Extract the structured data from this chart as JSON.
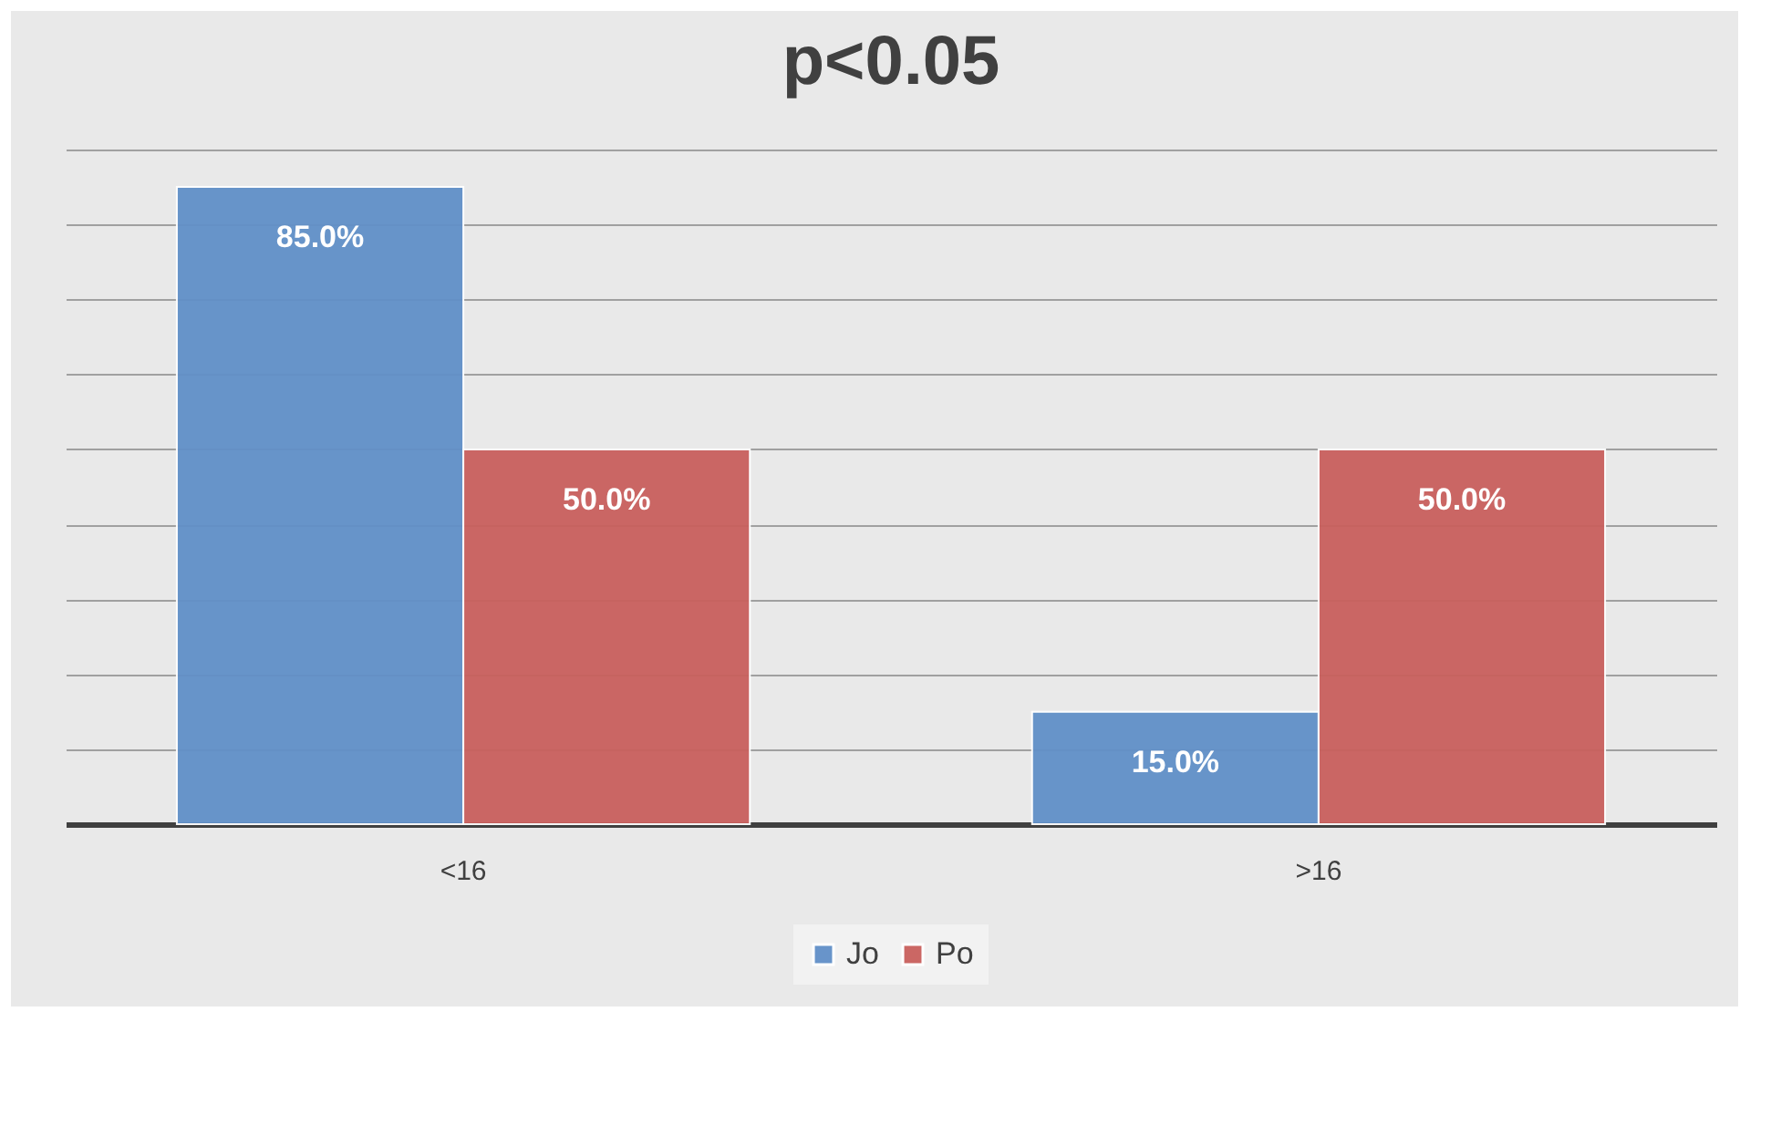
{
  "chart_data": {
    "type": "bar",
    "title": "p<0.05",
    "categories": [
      "<16",
      ">16"
    ],
    "series": [
      {
        "name": "Jo",
        "color": "#6190c8",
        "values": [
          85,
          15
        ],
        "value_labels": [
          "85.0%",
          "15.0%"
        ]
      },
      {
        "name": "Po",
        "color": "#c9605d",
        "values": [
          50,
          50
        ],
        "value_labels": [
          "50.0%",
          "50.0%"
        ]
      }
    ],
    "ylim": [
      0,
      90
    ],
    "yticks": [
      {
        "value": 0,
        "label": null
      },
      {
        "value": 10,
        "label": null
      },
      {
        "value": 20,
        "label": null
      },
      {
        "value": 30,
        "label": null
      },
      {
        "value": 40,
        "label": null
      },
      {
        "value": 50,
        "label": null
      },
      {
        "value": 60,
        "label": null
      },
      {
        "value": 70,
        "label": null
      },
      {
        "value": 80,
        "label": null
      },
      {
        "value": 90,
        "label": null
      }
    ],
    "grid": "y",
    "legend": "bottom",
    "tick_labels": "x"
  }
}
